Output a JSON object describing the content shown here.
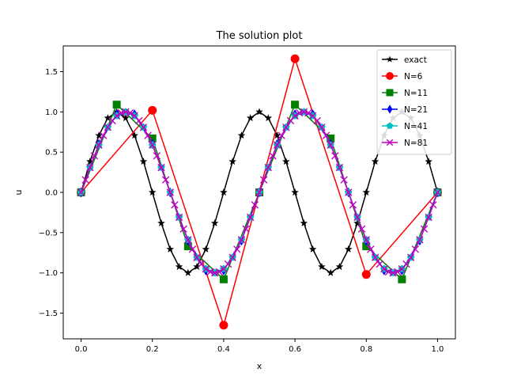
{
  "chart_data": {
    "type": "line",
    "title": "The solution plot",
    "xlabel": "x",
    "ylabel": "u",
    "xlim": [
      -0.05,
      1.05
    ],
    "ylim": [
      -1.82,
      1.82
    ],
    "xticks": [
      0.0,
      0.2,
      0.4,
      0.6,
      0.8,
      1.0
    ],
    "xtick_labels": [
      "0.0",
      "0.2",
      "0.4",
      "0.6",
      "0.8",
      "1.0"
    ],
    "yticks": [
      -1.5,
      -1.0,
      -0.5,
      0.0,
      0.5,
      1.0,
      1.5
    ],
    "ytick_labels": [
      "−1.5",
      "−1.0",
      "−0.5",
      "0.0",
      "0.5",
      "1.0",
      "1.5"
    ],
    "grid": false,
    "legend_position": "top-right",
    "series": [
      {
        "name": "exact",
        "color": "#000000",
        "marker": "star",
        "x": [
          0.0,
          0.025,
          0.05,
          0.075,
          0.1,
          0.125,
          0.15,
          0.175,
          0.2,
          0.225,
          0.25,
          0.275,
          0.3,
          0.325,
          0.35,
          0.375,
          0.4,
          0.425,
          0.45,
          0.475,
          0.5,
          0.525,
          0.55,
          0.575,
          0.6,
          0.625,
          0.65,
          0.675,
          0.7,
          0.725,
          0.75,
          0.775,
          0.8,
          0.825,
          0.85,
          0.875,
          0.9,
          0.925,
          0.95,
          0.975,
          1.0
        ],
        "y": [
          0.0,
          0.383,
          0.707,
          0.924,
          1.0,
          0.924,
          0.707,
          0.383,
          0.0,
          -0.383,
          -0.707,
          -0.924,
          -1.0,
          -0.924,
          -0.707,
          -0.383,
          0.0,
          0.383,
          0.707,
          0.924,
          1.0,
          0.924,
          0.707,
          0.383,
          0.0,
          -0.383,
          -0.707,
          -0.924,
          -1.0,
          -0.924,
          -0.707,
          -0.383,
          0.0,
          0.383,
          0.707,
          0.924,
          1.0,
          0.924,
          0.707,
          0.383,
          0.0
        ]
      },
      {
        "name": "N=6",
        "color": "#ff0000",
        "marker": "circle",
        "x": [
          0.0,
          0.2,
          0.4,
          0.6,
          0.8,
          1.0
        ],
        "y": [
          0.0,
          1.02,
          -1.65,
          1.66,
          -1.02,
          0.0
        ]
      },
      {
        "name": "N=11",
        "color": "#008000",
        "marker": "square",
        "x": [
          0.0,
          0.1,
          0.2,
          0.3,
          0.4,
          0.5,
          0.6,
          0.7,
          0.8,
          0.9,
          1.0
        ],
        "y": [
          0.0,
          1.09,
          0.67,
          -0.67,
          -1.08,
          0.0,
          1.09,
          0.67,
          -0.67,
          -1.08,
          0.0
        ]
      },
      {
        "name": "N=21",
        "color": "#0000ff",
        "marker": "diamond",
        "x": [
          0.0,
          0.05,
          0.1,
          0.15,
          0.2,
          0.25,
          0.3,
          0.35,
          0.4,
          0.45,
          0.5,
          0.55,
          0.6,
          0.65,
          0.7,
          0.75,
          0.8,
          0.85,
          0.9,
          0.95,
          1.0
        ],
        "y": [
          0.0,
          0.6,
          0.97,
          0.97,
          0.6,
          0.0,
          -0.6,
          -0.97,
          -0.97,
          -0.6,
          0.0,
          0.6,
          0.97,
          0.97,
          0.6,
          0.0,
          -0.6,
          -0.97,
          -0.97,
          -0.6,
          0.0
        ]
      },
      {
        "name": "N=41",
        "color": "#00bfbf",
        "marker": "pentagon",
        "x": [
          0.0,
          0.025,
          0.05,
          0.075,
          0.1,
          0.125,
          0.15,
          0.175,
          0.2,
          0.225,
          0.25,
          0.275,
          0.3,
          0.325,
          0.35,
          0.375,
          0.4,
          0.425,
          0.45,
          0.475,
          0.5,
          0.525,
          0.55,
          0.575,
          0.6,
          0.625,
          0.65,
          0.675,
          0.7,
          0.725,
          0.75,
          0.775,
          0.8,
          0.825,
          0.85,
          0.875,
          0.9,
          0.925,
          0.95,
          0.975,
          1.0
        ],
        "y": [
          0.0,
          0.309,
          0.588,
          0.809,
          0.951,
          1.0,
          0.951,
          0.809,
          0.588,
          0.309,
          0.0,
          -0.309,
          -0.588,
          -0.809,
          -0.951,
          -1.0,
          -0.951,
          -0.809,
          -0.588,
          -0.309,
          0.0,
          0.309,
          0.588,
          0.809,
          0.951,
          1.0,
          0.951,
          0.809,
          0.588,
          0.309,
          0.0,
          -0.309,
          -0.588,
          -0.809,
          -0.951,
          -1.0,
          -0.951,
          -0.809,
          -0.588,
          -0.309,
          0.0
        ]
      },
      {
        "name": "N=81",
        "color": "#bf00bf",
        "marker": "x",
        "x": [
          0.0,
          0.0125,
          0.025,
          0.0375,
          0.05,
          0.0625,
          0.075,
          0.0875,
          0.1,
          0.1125,
          0.125,
          0.1375,
          0.15,
          0.1625,
          0.175,
          0.1875,
          0.2,
          0.2125,
          0.225,
          0.2375,
          0.25,
          0.2625,
          0.275,
          0.2875,
          0.3,
          0.3125,
          0.325,
          0.3375,
          0.35,
          0.3625,
          0.375,
          0.3875,
          0.4,
          0.4125,
          0.425,
          0.4375,
          0.45,
          0.4625,
          0.475,
          0.4875,
          0.5,
          0.5125,
          0.525,
          0.5375,
          0.55,
          0.5625,
          0.575,
          0.5875,
          0.6,
          0.6125,
          0.625,
          0.6375,
          0.65,
          0.6625,
          0.675,
          0.6875,
          0.7,
          0.7125,
          0.725,
          0.7375,
          0.75,
          0.7625,
          0.775,
          0.7875,
          0.8,
          0.8125,
          0.825,
          0.8375,
          0.85,
          0.8625,
          0.875,
          0.8875,
          0.9,
          0.9125,
          0.925,
          0.9375,
          0.95,
          0.9625,
          0.975,
          0.9875,
          1.0
        ],
        "y": [
          0.0,
          0.156,
          0.309,
          0.454,
          0.588,
          0.707,
          0.809,
          0.891,
          0.951,
          0.988,
          1.0,
          0.988,
          0.951,
          0.891,
          0.809,
          0.707,
          0.588,
          0.454,
          0.309,
          0.156,
          0.0,
          -0.156,
          -0.309,
          -0.454,
          -0.588,
          -0.707,
          -0.809,
          -0.891,
          -0.951,
          -0.988,
          -1.0,
          -0.988,
          -0.951,
          -0.891,
          -0.809,
          -0.707,
          -0.588,
          -0.454,
          -0.309,
          -0.156,
          0.0,
          0.156,
          0.309,
          0.454,
          0.588,
          0.707,
          0.809,
          0.891,
          0.951,
          0.988,
          1.0,
          0.988,
          0.951,
          0.891,
          0.809,
          0.707,
          0.588,
          0.454,
          0.309,
          0.156,
          0.0,
          -0.156,
          -0.309,
          -0.454,
          -0.588,
          -0.707,
          -0.809,
          -0.891,
          -0.951,
          -0.988,
          -1.0,
          -0.988,
          -0.951,
          -0.891,
          -0.809,
          -0.707,
          -0.588,
          -0.454,
          -0.309,
          -0.156,
          0.0
        ]
      }
    ]
  }
}
